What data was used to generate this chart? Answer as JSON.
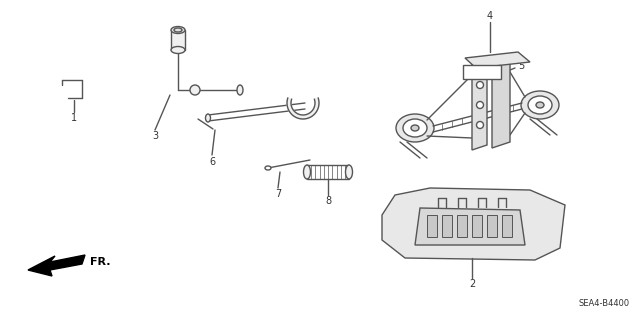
{
  "background_color": "#ffffff",
  "diagram_code": "SEA4-B4400",
  "fr_label": "FR.",
  "line_color": "#555555",
  "label_color": "#333333",
  "lw": 1.0
}
